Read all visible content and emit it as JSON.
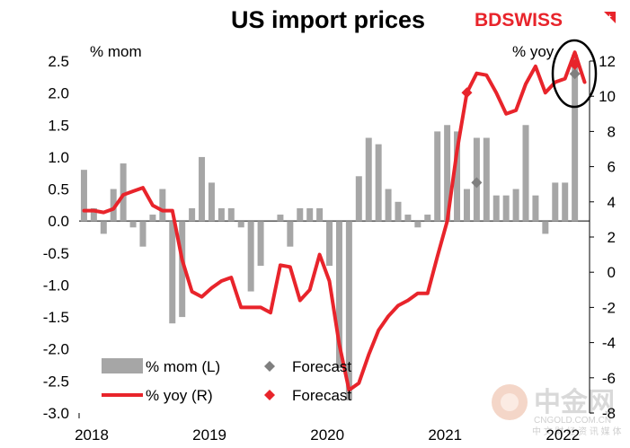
{
  "chart_data": {
    "type": "bar+line",
    "title": "US import prices",
    "left_axis": {
      "label": "% mom",
      "range": [
        -3.0,
        2.5
      ],
      "ticks": [
        "2.5",
        "2.0",
        "1.5",
        "1.0",
        "0.5",
        "0.0",
        "-0.5",
        "-1.0",
        "-1.5",
        "-2.0",
        "-2.5",
        "-3.0"
      ]
    },
    "right_axis": {
      "label": "% yoy",
      "range": [
        -8,
        12
      ],
      "ticks": [
        "12",
        "10",
        "8",
        "6",
        "4",
        "2",
        "0",
        "-2",
        "-4",
        "-6",
        "-8"
      ]
    },
    "x_ticks": [
      "2018",
      "2019",
      "2020",
      "2021",
      "2022"
    ],
    "months": [
      "2018-01",
      "2018-02",
      "2018-03",
      "2018-04",
      "2018-05",
      "2018-06",
      "2018-07",
      "2018-08",
      "2018-09",
      "2018-10",
      "2018-11",
      "2018-12",
      "2019-01",
      "2019-02",
      "2019-03",
      "2019-04",
      "2019-05",
      "2019-06",
      "2019-07",
      "2019-08",
      "2019-09",
      "2019-10",
      "2019-11",
      "2019-12",
      "2020-01",
      "2020-02",
      "2020-03",
      "2020-04",
      "2020-05",
      "2020-06",
      "2020-07",
      "2020-08",
      "2020-09",
      "2020-10",
      "2020-11",
      "2020-12",
      "2021-01",
      "2021-02",
      "2021-03",
      "2021-04",
      "2021-05",
      "2021-06",
      "2021-07",
      "2021-08",
      "2021-09",
      "2021-10",
      "2021-11",
      "2021-12",
      "2022-01",
      "2022-02",
      "2022-03",
      "2022-04"
    ],
    "series": [
      {
        "name": "% mom (L)",
        "type": "bar",
        "axis": "left",
        "color": "#a6a6a6",
        "values": [
          0.8,
          0.2,
          -0.2,
          0.5,
          0.9,
          -0.1,
          -0.4,
          0.1,
          0.5,
          -1.6,
          -1.5,
          0.2,
          1.0,
          0.6,
          0.2,
          0.2,
          -0.1,
          -1.1,
          -0.7,
          0.0,
          0.1,
          -0.4,
          0.2,
          0.2,
          0.2,
          -0.7,
          -2.3,
          -2.8,
          0.7,
          1.3,
          1.2,
          0.5,
          0.3,
          0.1,
          -0.1,
          0.1,
          1.4,
          1.5,
          1.4,
          0.5,
          1.3,
          1.3,
          0.4,
          0.4,
          0.5,
          1.5,
          0.4,
          -0.2,
          0.6,
          0.6,
          2.6,
          0.0
        ]
      },
      {
        "name": "% yoy (R)",
        "type": "line",
        "axis": "right",
        "color": "#e8242b",
        "values": [
          3.5,
          3.5,
          3.4,
          3.6,
          4.4,
          4.6,
          4.8,
          3.8,
          3.5,
          3.5,
          0.7,
          -1.1,
          -1.4,
          -0.9,
          -0.5,
          -0.3,
          -2.0,
          -2.0,
          -2.0,
          -2.3,
          0.4,
          0.3,
          -1.6,
          -1.0,
          1.0,
          -0.5,
          -4.1,
          -6.7,
          -6.3,
          -4.7,
          -3.3,
          -2.5,
          -1.9,
          -1.6,
          -1.2,
          -1.2,
          0.9,
          2.9,
          6.9,
          10.2,
          11.3,
          11.2,
          10.2,
          9.0,
          9.2,
          10.7,
          11.7,
          10.2,
          10.8,
          11.0,
          12.5,
          10.8
        ]
      }
    ],
    "forecast": [
      {
        "name": "Forecast",
        "series": "% mom (L)",
        "color": "#7f7f7f",
        "points": [
          {
            "month": "2021-05",
            "value": 0.6
          },
          {
            "month": "2022-03",
            "value": 2.3
          }
        ]
      },
      {
        "name": "Forecast",
        "series": "% yoy (R)",
        "color": "#e8242b",
        "points": [
          {
            "month": "2021-04",
            "value": 10.2
          },
          {
            "month": "2022-03",
            "value": 11.8
          }
        ]
      }
    ],
    "legend_entries": [
      "% mom (L)",
      "Forecast",
      "% yoy (R)",
      "Forecast"
    ],
    "legend_position": "bottom-left",
    "grid": false
  },
  "brand": {
    "part1": "BD",
    "part2": "SWISS",
    "color": "#e8242b"
  },
  "watermark": {
    "text": "中金网",
    "subtext": "CNGOLD.COM.CN",
    "cn_subtext": "中 文 财 经 资 讯 媒 体"
  }
}
